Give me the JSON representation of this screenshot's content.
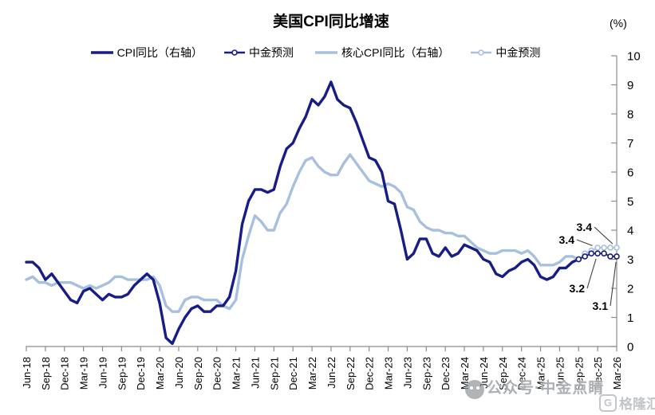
{
  "title": "美国CPI同比增速",
  "unit_label": "(%)",
  "colors": {
    "cpi_navy": "#161d87",
    "core_light_blue": "#a7c0de",
    "axis": "#8c8c8c",
    "leader": "#3f3f3f",
    "title_text": "#000000"
  },
  "watermark": {
    "official_account_text": "公众号·中金点睛",
    "brand_initial": "G",
    "brand_text": "格隆汇"
  },
  "chart_data": {
    "type": "line",
    "title": "美国CPI同比增速",
    "unit": "(%)",
    "legend_position": "top",
    "grid": false,
    "ylim": [
      0,
      10
    ],
    "y_ticks": [
      0,
      1,
      2,
      3,
      4,
      5,
      6,
      7,
      8,
      9,
      10
    ],
    "y_axis_side": "right",
    "months_total": 93,
    "x_tick_labels": [
      "Jun-18",
      "Sep-18",
      "Dec-18",
      "Mar-19",
      "Jun-19",
      "Sep-19",
      "Dec-19",
      "Mar-20",
      "Jun-20",
      "Sep-20",
      "Dec-20",
      "Mar-21",
      "Jun-21",
      "Sep-21",
      "Dec-21",
      "Mar-22",
      "Jun-22",
      "Sep-22",
      "Dec-22",
      "Mar-23",
      "Jun-23",
      "Sep-23",
      "Dec-23",
      "Mar-24",
      "Jun-24",
      "Sep-24",
      "Dec-24",
      "Mar-25",
      "Jun-25",
      "Sep-25",
      "Dec-25",
      "Mar-26"
    ],
    "series": [
      {
        "name": "CPI同比（右轴）",
        "color": "#161d87",
        "style": "solid",
        "start_month": 0,
        "values": [
          2.9,
          2.9,
          2.7,
          2.3,
          2.5,
          2.2,
          1.9,
          1.6,
          1.5,
          1.9,
          2.0,
          1.8,
          1.6,
          1.8,
          1.7,
          1.7,
          1.8,
          2.1,
          2.3,
          2.5,
          2.3,
          1.5,
          0.3,
          0.1,
          0.6,
          1.0,
          1.3,
          1.4,
          1.2,
          1.2,
          1.4,
          1.4,
          1.7,
          2.6,
          4.2,
          5.0,
          5.4,
          5.4,
          5.3,
          5.4,
          6.2,
          6.8,
          7.0,
          7.5,
          7.9,
          8.5,
          8.3,
          8.6,
          9.1,
          8.5,
          8.3,
          8.2,
          7.7,
          7.1,
          6.5,
          6.4,
          6.0,
          5.0,
          4.9,
          4.0,
          3.0,
          3.2,
          3.7,
          3.7,
          3.2,
          3.1,
          3.4,
          3.1,
          3.2,
          3.5,
          3.4,
          3.3,
          3.0,
          2.9,
          2.5,
          2.4,
          2.6,
          2.7,
          2.9,
          3.0,
          2.8,
          2.4,
          2.3,
          2.4,
          2.7,
          2.7,
          2.9,
          3.0
        ]
      },
      {
        "name": "中金预测",
        "color": "#161d87",
        "style": "line_markers",
        "start_month": 87,
        "values": [
          3.0,
          3.1,
          3.2,
          3.2,
          3.2,
          3.1,
          3.1
        ]
      },
      {
        "name": "核心CPI同比（右轴）",
        "color": "#a7c0de",
        "style": "solid",
        "start_month": 0,
        "values": [
          2.3,
          2.4,
          2.2,
          2.2,
          2.1,
          2.2,
          2.2,
          2.2,
          2.1,
          2.0,
          2.1,
          2.0,
          2.1,
          2.2,
          2.4,
          2.4,
          2.3,
          2.3,
          2.3,
          2.3,
          2.4,
          2.1,
          1.4,
          1.2,
          1.2,
          1.6,
          1.7,
          1.7,
          1.6,
          1.6,
          1.6,
          1.4,
          1.3,
          1.6,
          3.0,
          3.8,
          4.5,
          4.3,
          4.0,
          4.0,
          4.6,
          4.9,
          5.5,
          6.0,
          6.4,
          6.5,
          6.2,
          6.0,
          5.9,
          5.9,
          6.3,
          6.6,
          6.3,
          6.0,
          5.7,
          5.6,
          5.5,
          5.6,
          5.5,
          5.3,
          4.8,
          4.7,
          4.3,
          4.1,
          4.0,
          4.0,
          3.9,
          3.9,
          3.8,
          3.8,
          3.6,
          3.4,
          3.3,
          3.2,
          3.2,
          3.3,
          3.3,
          3.3,
          3.2,
          3.3,
          3.1,
          2.8,
          2.8,
          2.8,
          2.9,
          3.1,
          3.1,
          3.0
        ]
      },
      {
        "name": "中金预测",
        "color": "#a7c0de",
        "style": "line_markers",
        "start_month": 87,
        "values": [
          3.0,
          3.2,
          3.3,
          3.4,
          3.4,
          3.4,
          3.4
        ]
      }
    ],
    "annotations": [
      {
        "text": "3.4",
        "series": 3,
        "month": 90,
        "label_x": 720,
        "label_y": 306
      },
      {
        "text": "3.4",
        "series": 3,
        "month": 93,
        "label_x": 742,
        "label_y": 290
      },
      {
        "text": "3.2",
        "series": 1,
        "month": 90,
        "label_x": 733,
        "label_y": 367
      },
      {
        "text": "3.1",
        "series": 1,
        "month": 93,
        "label_x": 762,
        "label_y": 389
      }
    ]
  }
}
